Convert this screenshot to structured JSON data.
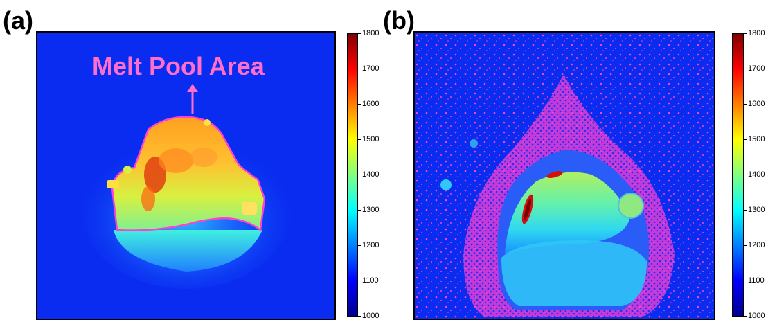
{
  "panels": [
    {
      "label": "(a)",
      "annotation": "Melt Pool Area"
    },
    {
      "label": "(b)"
    }
  ],
  "colorbar": {
    "ticks": [
      "1800",
      "1700",
      "1600",
      "1500",
      "1400",
      "1300",
      "1200",
      "1100",
      "1000"
    ],
    "colormap": "jet",
    "min": 1000,
    "max": 1800
  },
  "colors": {
    "background": "#0a2cf0",
    "annotation": "#ff6fc9"
  }
}
